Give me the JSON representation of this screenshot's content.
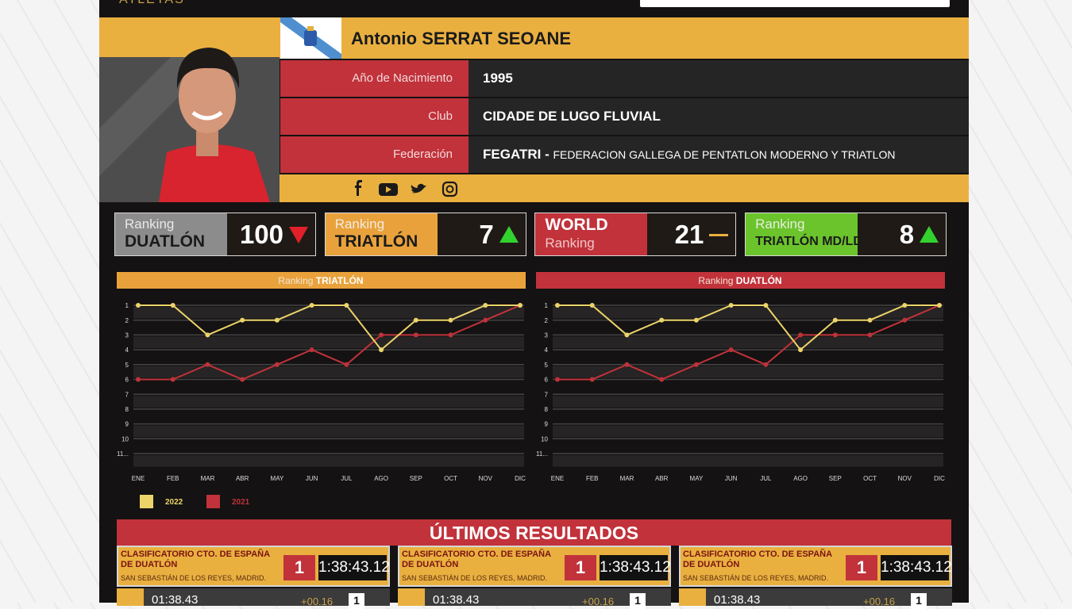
{
  "header": {
    "brand": "ATLETAS"
  },
  "athlete": {
    "name": "Antonio SERRAT SEOANE",
    "fields": [
      {
        "label": "Año de Nacimiento",
        "value": "1995"
      },
      {
        "label": "Club",
        "value": "CIDADE DE LUGO FLUVIAL"
      },
      {
        "label": "Federación",
        "value": "FEGATRI -",
        "detail": "FEDERACION GALLEGA DE PENTATLON MODERNO Y TRIATLON"
      }
    ]
  },
  "rankings": [
    {
      "small": "Ranking",
      "big": "DUATLÓN",
      "value": 100,
      "trend": "down",
      "color": "#8c8c8c"
    },
    {
      "small": "Ranking",
      "big": "TRIATLÓN",
      "value": 7,
      "trend": "up",
      "color": "#e9a23b"
    },
    {
      "big": "WORLD",
      "small": "Ranking",
      "big_first": true,
      "value": 21,
      "trend": "same",
      "color": "#c1323b"
    },
    {
      "small": "Ranking",
      "big": "TRIATLÓN MD/LD",
      "value": 8,
      "trend": "up",
      "color": "#6bc42b"
    }
  ],
  "chart_data": [
    {
      "type": "line",
      "title": "Ranking",
      "title_bold": "TRIATLÓN",
      "header_color": "#e9a23b",
      "categories": [
        "ENE",
        "FEB",
        "MAR",
        "ABR",
        "MAY",
        "JUN",
        "JUL",
        "AGO",
        "SEP",
        "OCT",
        "NOV",
        "DIC"
      ],
      "series": [
        {
          "name": "2022",
          "color": "#ecd46a",
          "values": [
            1,
            1,
            3,
            2,
            2,
            1,
            1,
            4,
            2,
            2,
            1,
            1
          ]
        },
        {
          "name": "2021",
          "color": "#c1323b",
          "values": [
            6,
            6,
            5,
            6,
            5,
            4,
            5,
            3,
            3,
            3,
            2,
            1
          ]
        }
      ],
      "ylim": [
        1,
        11
      ],
      "inverted": true,
      "yticks": [
        1,
        2,
        3,
        4,
        5,
        6,
        7,
        8,
        9,
        10,
        {
          "value": 11,
          "label": "11..."
        }
      ],
      "grid": true
    },
    {
      "type": "line",
      "title": "Ranking",
      "title_bold": "DUATLÓN",
      "header_color": "#c1323b",
      "categories": [
        "ENE",
        "FEB",
        "MAR",
        "ABR",
        "MAY",
        "JUN",
        "JUL",
        "AGO",
        "SEP",
        "OCT",
        "NOV",
        "DIC"
      ],
      "series": [
        {
          "color": "#ecd46a",
          "values": [
            1,
            1,
            3,
            2,
            2,
            1,
            1,
            4,
            2,
            2,
            1,
            1
          ]
        },
        {
          "color": "#c1323b",
          "values": [
            6,
            6,
            5,
            6,
            5,
            4,
            5,
            3,
            3,
            3,
            2,
            1
          ]
        }
      ],
      "ylim": [
        1,
        11
      ],
      "inverted": true,
      "yticks": [
        1,
        2,
        3,
        4,
        5,
        6,
        7,
        8,
        9,
        10,
        {
          "value": 11,
          "label": "11..."
        }
      ],
      "grid": true
    }
  ],
  "results": {
    "title": "ÚLTIMOS RESULTADOS",
    "items": [
      {
        "event": "CLASIFICATORIO CTO. DE ESPAÑA DE DUATLÓN",
        "location": "SAN SEBASTIÁN DE LOS REYES, MADRID.",
        "position": 1,
        "time": "1:38:43.12",
        "split_time": "01:38.43",
        "diff": "+00.16",
        "split_position": 1
      },
      {
        "event": "CLASIFICATORIO CTO. DE ESPAÑA DE DUATLÓN",
        "location": "SAN SEBASTIÁN DE LOS REYES, MADRID.",
        "position": 1,
        "time": "1:38:43.12",
        "split_time": "01:38.43",
        "diff": "+00.16",
        "split_position": 1
      },
      {
        "event": "CLASIFICATORIO CTO. DE ESPAÑA DE DUATLÓN",
        "location": "SAN SEBASTIÁN DE LOS REYES, MADRID.",
        "position": 1,
        "time": "1:38:43.12",
        "split_time": "01:38.43",
        "diff": "+00.16",
        "split_position": 1
      }
    ]
  }
}
